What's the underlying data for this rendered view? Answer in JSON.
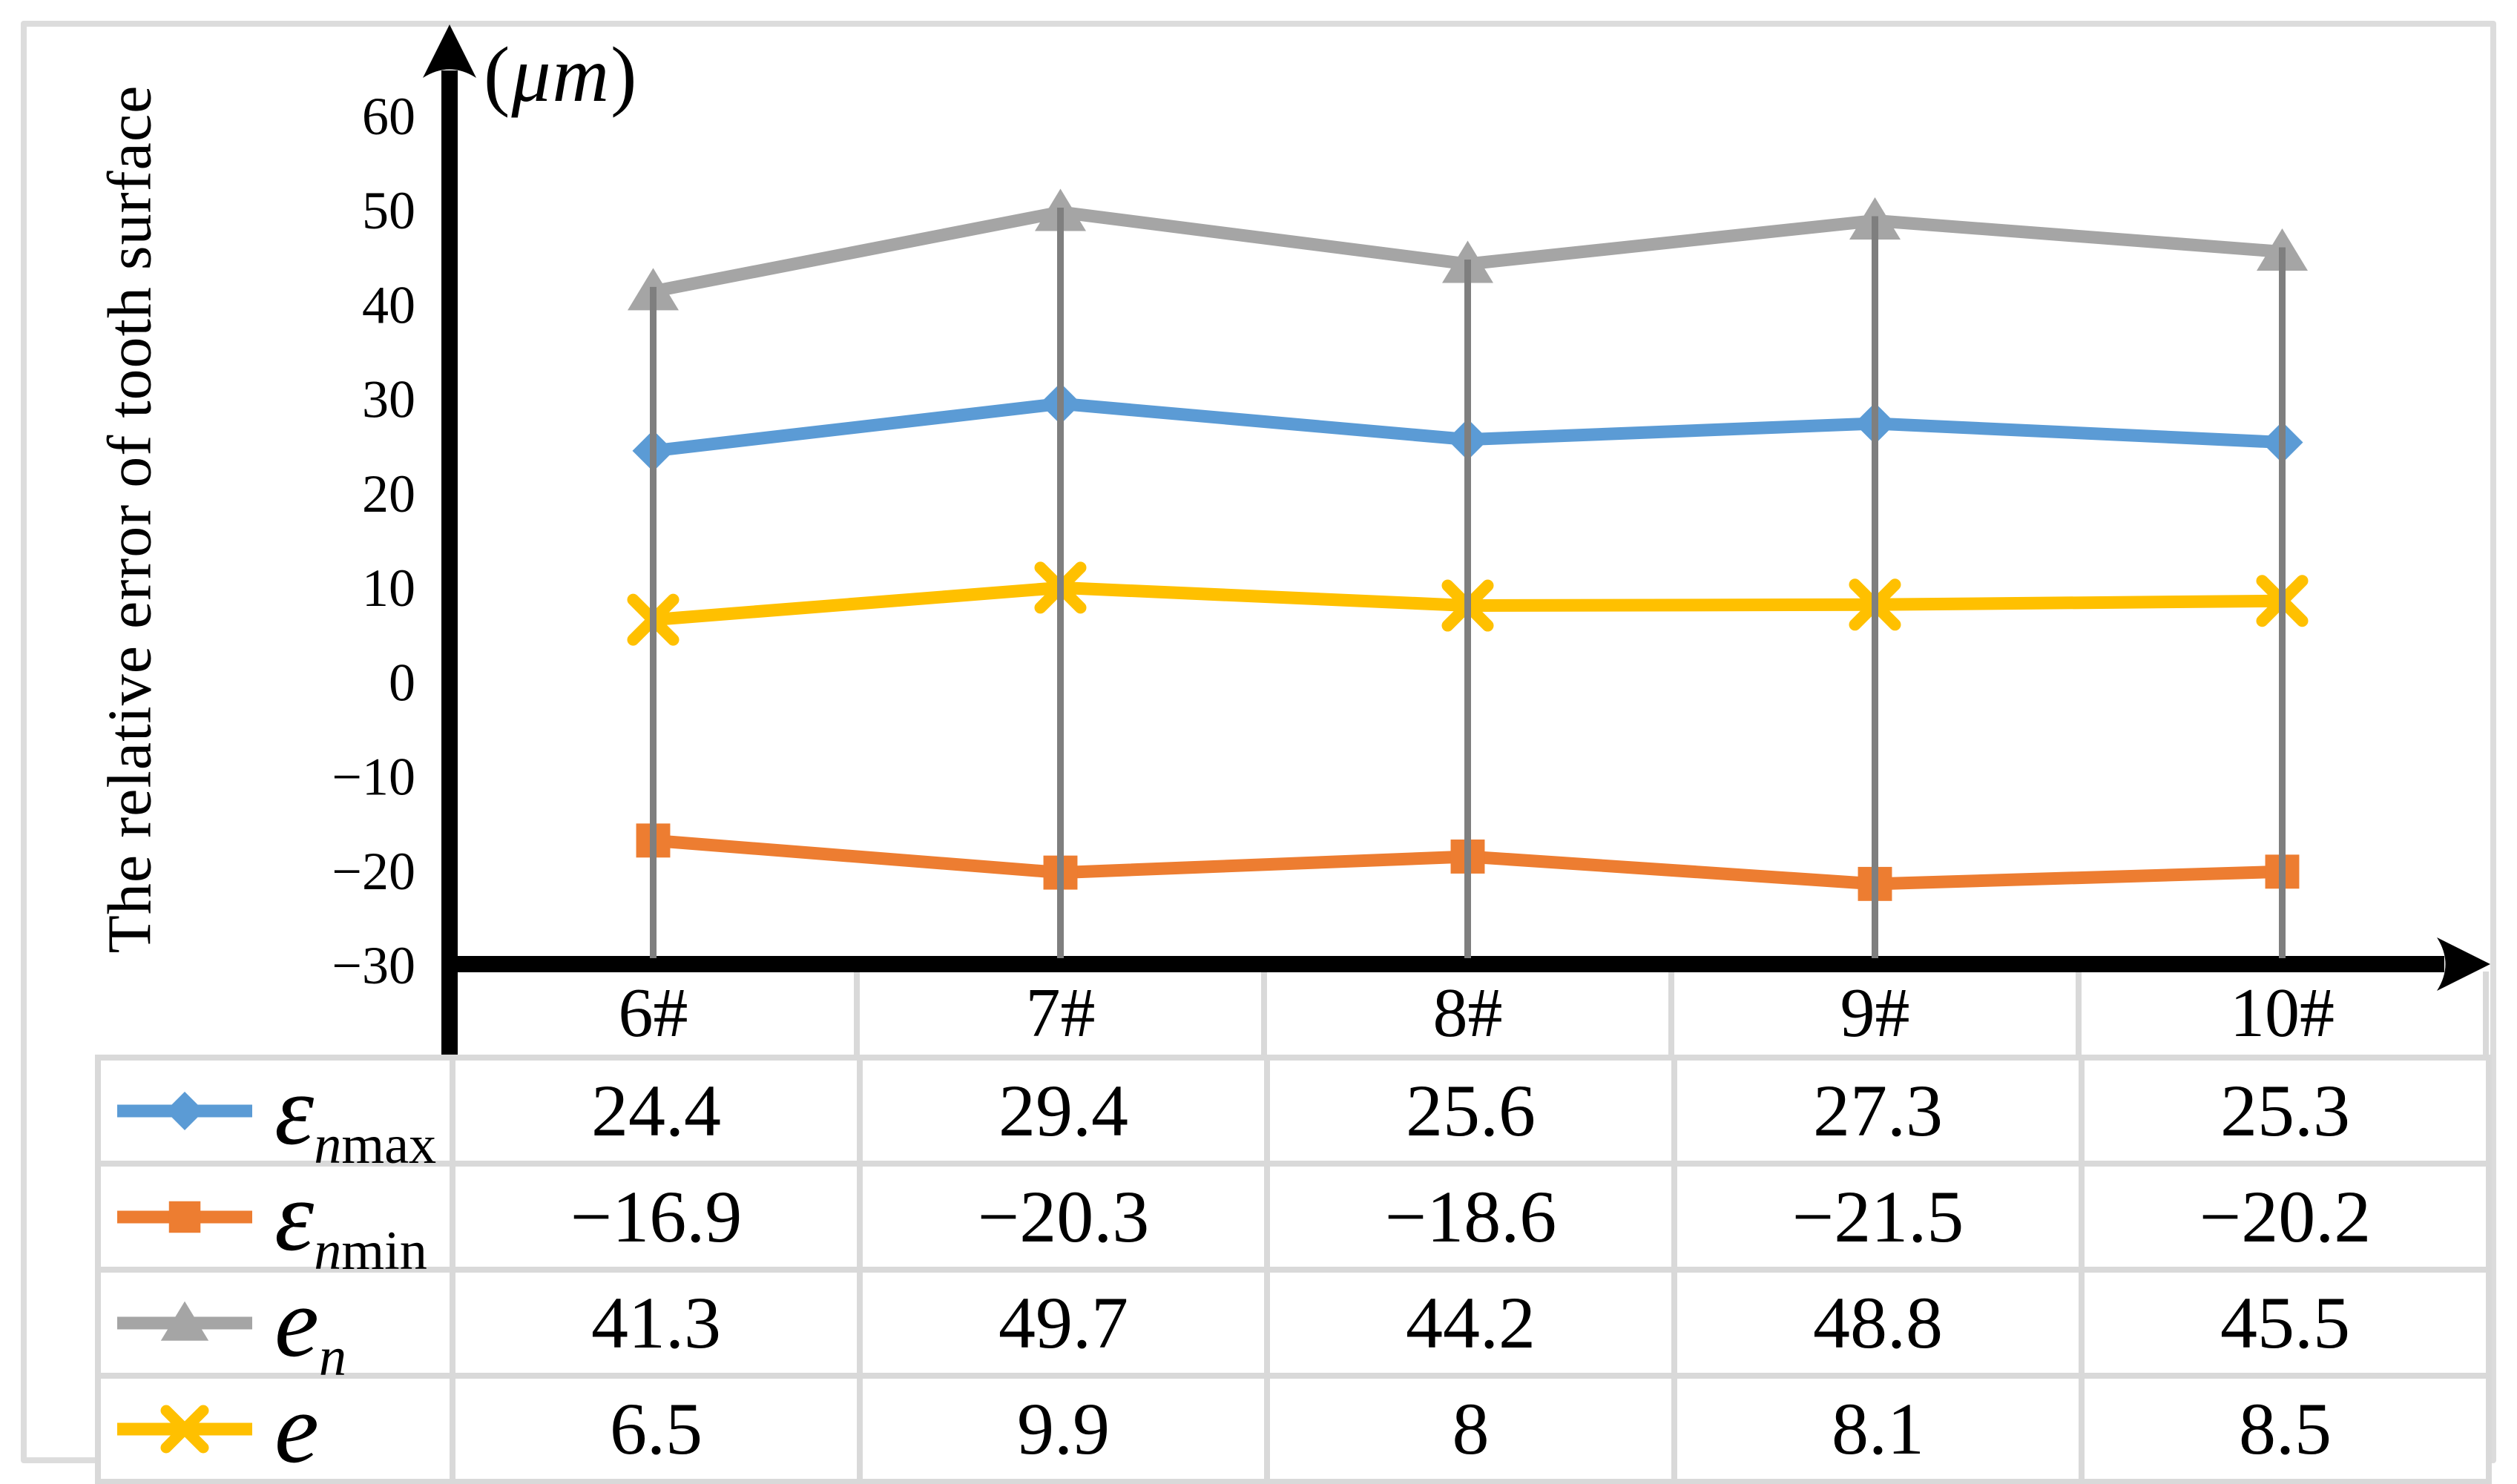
{
  "figure": {
    "y_axis_title": "The relative error of tooth surface",
    "unit_open": "(",
    "unit": "μm",
    "unit_close": ")"
  },
  "chart_data": {
    "type": "line",
    "title": "",
    "xlabel": "",
    "ylabel": "The relative error of tooth surface",
    "unit": "μm",
    "categories": [
      "6#",
      "7#",
      "8#",
      "9#",
      "10#"
    ],
    "ylim": [
      -30,
      60
    ],
    "y_step": 10,
    "y_ticks": [
      "60",
      "50",
      "40",
      "30",
      "20",
      "10",
      "0",
      "−10",
      "−20",
      "−30"
    ],
    "grid": "vertical drop lines at each category",
    "legend_position": "table rows left of data table",
    "series": [
      {
        "name": "epsilon-n-max",
        "label_base": "ε",
        "label_sub_italic": "n",
        "label_sub_roman": "max",
        "color": "#5B9BD5",
        "marker": "diamond",
        "values": [
          24.4,
          29.4,
          25.6,
          27.3,
          25.3
        ],
        "cells": [
          "24.4",
          "29.4",
          "25.6",
          "27.3",
          "25.3"
        ]
      },
      {
        "name": "epsilon-n-min",
        "label_base": "ε",
        "label_sub_italic": "n",
        "label_sub_roman": "min",
        "color": "#ED7D31",
        "marker": "square",
        "values": [
          -16.9,
          -20.3,
          -18.6,
          -21.5,
          -20.2
        ],
        "cells": [
          "−16.9",
          "−20.3",
          "−18.6",
          "−21.5",
          "−20.2"
        ]
      },
      {
        "name": "e-n",
        "label_base": "e",
        "label_sub_italic": "n",
        "label_sub_roman": "",
        "color": "#A5A5A5",
        "marker": "triangle",
        "values": [
          41.3,
          49.7,
          44.2,
          48.8,
          45.5
        ],
        "cells": [
          "41.3",
          "49.7",
          "44.2",
          "48.8",
          "45.5"
        ]
      },
      {
        "name": "e",
        "label_base": "e",
        "label_sub_italic": "",
        "label_sub_roman": "",
        "color": "#FFC000",
        "marker": "x",
        "values": [
          6.5,
          9.9,
          8,
          8.1,
          8.5
        ],
        "cells": [
          "6.5",
          "9.9",
          "8",
          "8.1",
          "8.5"
        ]
      }
    ]
  },
  "colors": {
    "axis": "#000000",
    "drop_line": "#7f7f7f",
    "table_border": "#d9d9d9",
    "frame_border": "#dcdcdc",
    "background": "#ffffff"
  }
}
